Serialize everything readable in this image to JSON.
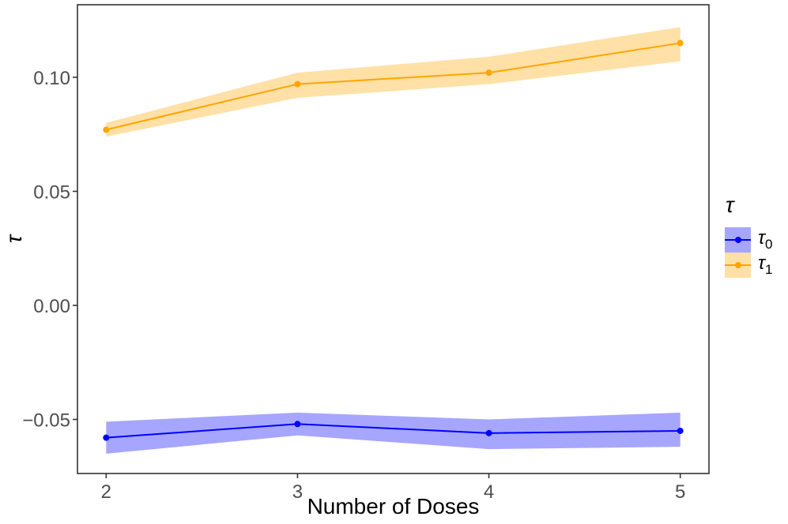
{
  "figure": {
    "background": "#FFFFFF",
    "panel_border_color": "#333333",
    "tick_color": "#333333",
    "tick_label_color": "#4D4D4D",
    "axis_title_color": "#000000"
  },
  "chart_data": {
    "type": "line",
    "title": "",
    "xlabel": "Number of Doses",
    "ylabel": "τ",
    "x": [
      2,
      3,
      4,
      5
    ],
    "xticks": [
      2,
      3,
      4,
      5
    ],
    "xtick_labels": [
      "2",
      "3",
      "4",
      "5"
    ],
    "yticks": [
      -0.05,
      0.0,
      0.05,
      0.1
    ],
    "ytick_labels": [
      "−0.05",
      "0.00",
      "0.05",
      "0.10"
    ],
    "xlim": [
      1.85,
      5.15
    ],
    "ylim": [
      -0.0737,
      0.1318
    ],
    "grid": false,
    "legend_position": "right",
    "legend_title": "τ",
    "series": [
      {
        "name": "tau0",
        "label_base": "τ",
        "label_sub": "0",
        "color": "#0000FF",
        "ribbon_opacity": 0.35,
        "values": [
          -0.058,
          -0.052,
          -0.056,
          -0.055
        ],
        "ribbon_low": [
          -0.065,
          -0.057,
          -0.063,
          -0.062
        ],
        "ribbon_high": [
          -0.051,
          -0.047,
          -0.05,
          -0.047
        ]
      },
      {
        "name": "tau1",
        "label_base": "τ",
        "label_sub": "1",
        "color": "#FFA500",
        "ribbon_opacity": 0.35,
        "values": [
          0.077,
          0.097,
          0.102,
          0.115
        ],
        "ribbon_low": [
          0.074,
          0.091,
          0.097,
          0.107
        ],
        "ribbon_high": [
          0.08,
          0.102,
          0.109,
          0.122
        ]
      }
    ]
  }
}
